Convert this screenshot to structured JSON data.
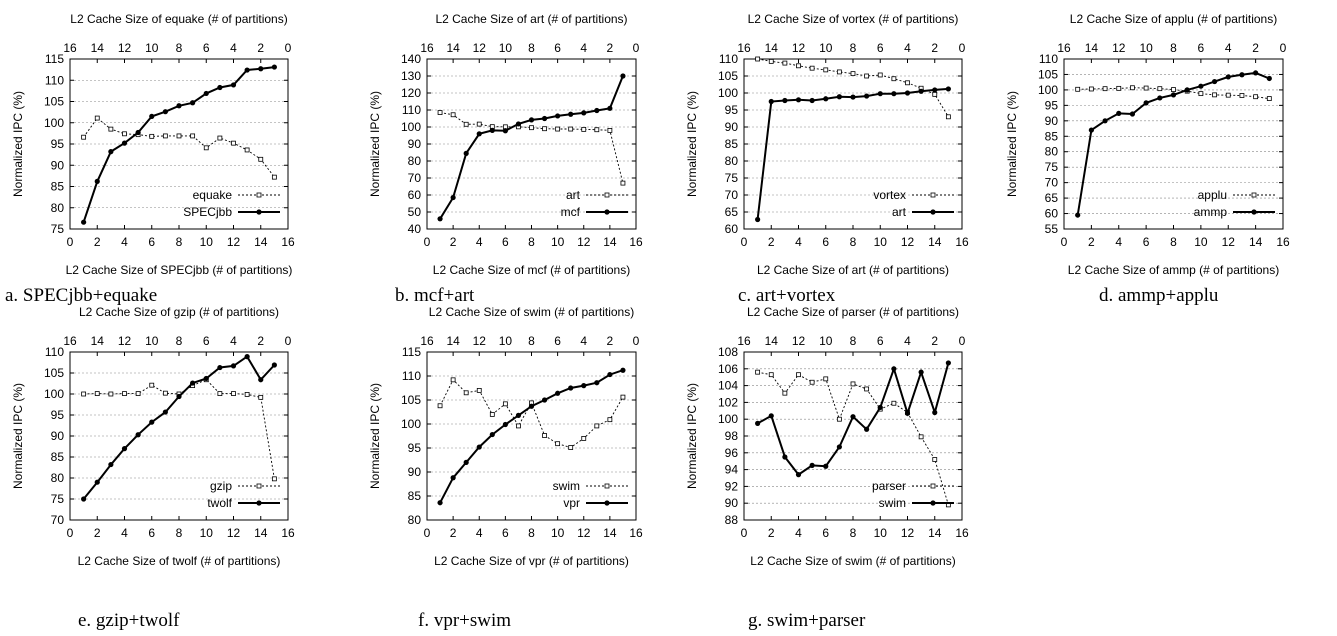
{
  "figure": {
    "y_axis_label": "Normalized IPC (%)",
    "top_tick_labels": [
      "16",
      "14",
      "12",
      "10",
      "8",
      "6",
      "4",
      "2",
      "0"
    ],
    "bottom_tick_labels": [
      "0",
      "2",
      "4",
      "6",
      "8",
      "10",
      "12",
      "14",
      "16"
    ]
  },
  "chart_data": [
    {
      "type": "line",
      "caption": "a. SPECjbb+equake",
      "xlabel": "L2 Cache Size of SPECjbb (# of partitions)",
      "x2label": "L2 Cache Size of equake (# of partitions)",
      "ylabel": "Normalized IPC (%)",
      "xlim": [
        0,
        16
      ],
      "ylim": [
        75,
        115
      ],
      "yticks": [
        75,
        80,
        85,
        90,
        95,
        100,
        105,
        110,
        115
      ],
      "x": [
        1,
        2,
        3,
        4,
        5,
        6,
        7,
        8,
        9,
        10,
        11,
        12,
        13,
        14,
        15
      ],
      "series": [
        {
          "name": "equake",
          "style": "dotted",
          "values": [
            96.6,
            101.1,
            98.5,
            97.4,
            97.2,
            96.8,
            96.9,
            96.9,
            96.9,
            94.1,
            96.4,
            95.2,
            93.6,
            91.4,
            87.2
          ]
        },
        {
          "name": "SPECjbb",
          "style": "solid",
          "values": [
            76.6,
            86.2,
            93.2,
            95.2,
            97.7,
            101.5,
            102.6,
            104.0,
            104.7,
            106.9,
            108.3,
            108.9,
            112.4,
            112.7,
            113.1
          ]
        }
      ],
      "legend_position": "bottom-right"
    },
    {
      "type": "line",
      "caption": "b. mcf+art",
      "xlabel": "L2 Cache Size of mcf (# of partitions)",
      "x2label": "L2 Cache Size of art (# of partitions)",
      "ylabel": "Normalized IPC (%)",
      "xlim": [
        0,
        16
      ],
      "ylim": [
        40,
        140
      ],
      "yticks": [
        40,
        50,
        60,
        70,
        80,
        90,
        100,
        110,
        120,
        130,
        140
      ],
      "x": [
        1,
        2,
        3,
        4,
        5,
        6,
        7,
        8,
        9,
        10,
        11,
        12,
        13,
        14,
        15
      ],
      "series": [
        {
          "name": "art",
          "style": "dotted",
          "values": [
            108.5,
            107.2,
            101.6,
            101.7,
            100.2,
            100.1,
            100.1,
            99.6,
            99.0,
            98.8,
            98.8,
            98.6,
            98.4,
            98.0,
            67.0
          ]
        },
        {
          "name": "mcf",
          "style": "solid",
          "values": [
            46.0,
            58.5,
            84.5,
            96.0,
            98.0,
            97.8,
            101.8,
            104.2,
            105.0,
            106.5,
            107.5,
            108.3,
            109.7,
            111.0,
            130.0
          ]
        }
      ],
      "legend_position": "bottom-right"
    },
    {
      "type": "line",
      "caption": "c. art+vortex",
      "xlabel": "L2 Cache Size of art (# of partitions)",
      "x2label": "L2 Cache Size of vortex (# of partitions)",
      "ylabel": "Normalized IPC (%)",
      "xlim": [
        0,
        16
      ],
      "ylim": [
        60,
        110
      ],
      "yticks": [
        60,
        65,
        70,
        75,
        80,
        85,
        90,
        95,
        100,
        105,
        110
      ],
      "x": [
        1,
        2,
        3,
        4,
        5,
        6,
        7,
        8,
        9,
        10,
        11,
        12,
        13,
        14,
        15
      ],
      "series": [
        {
          "name": "vortex",
          "style": "dotted",
          "values": [
            110.0,
            109.3,
            108.8,
            108.0,
            107.3,
            106.8,
            106.2,
            105.7,
            105.0,
            105.3,
            104.2,
            103.0,
            101.4,
            99.6,
            93.0
          ]
        },
        {
          "name": "art",
          "style": "solid",
          "values": [
            62.8,
            97.5,
            97.8,
            98.0,
            97.8,
            98.3,
            98.9,
            98.8,
            99.1,
            99.8,
            99.8,
            100.0,
            100.5,
            100.9,
            101.2
          ]
        }
      ],
      "legend_position": "bottom-right"
    },
    {
      "type": "line",
      "caption": "d. ammp+applu",
      "xlabel": "L2 Cache Size of ammp (# of partitions)",
      "x2label": "L2 Cache Size of applu (# of partitions)",
      "ylabel": "Normalized IPC (%)",
      "xlim": [
        0,
        16
      ],
      "ylim": [
        55,
        110
      ],
      "yticks": [
        55,
        60,
        65,
        70,
        75,
        80,
        85,
        90,
        95,
        100,
        105,
        110
      ],
      "x": [
        1,
        2,
        3,
        4,
        5,
        6,
        7,
        8,
        9,
        10,
        11,
        12,
        13,
        14,
        15
      ],
      "series": [
        {
          "name": "applu",
          "style": "dotted",
          "values": [
            100.2,
            100.3,
            100.4,
            100.5,
            100.7,
            100.6,
            100.4,
            100.1,
            99.6,
            98.8,
            98.4,
            98.3,
            98.2,
            97.8,
            97.2
          ]
        },
        {
          "name": "ammp",
          "style": "solid",
          "values": [
            59.5,
            87.0,
            90.0,
            92.4,
            92.2,
            95.8,
            97.4,
            98.4,
            100.0,
            101.2,
            102.7,
            104.2,
            104.9,
            105.5,
            103.7
          ]
        }
      ],
      "legend_position": "bottom-right"
    },
    {
      "type": "line",
      "caption": "e. gzip+twolf",
      "xlabel": "L2 Cache Size of twolf (# of partitions)",
      "x2label": "L2 Cache Size of gzip (# of partitions)",
      "ylabel": "Normalized IPC (%)",
      "xlim": [
        0,
        16
      ],
      "ylim": [
        70,
        110
      ],
      "yticks": [
        70,
        75,
        80,
        85,
        90,
        95,
        100,
        105,
        110
      ],
      "x": [
        1,
        2,
        3,
        4,
        5,
        6,
        7,
        8,
        9,
        10,
        11,
        12,
        13,
        14,
        15
      ],
      "series": [
        {
          "name": "gzip",
          "style": "dotted",
          "values": [
            100.0,
            100.1,
            100.0,
            100.1,
            100.1,
            102.1,
            100.2,
            100.0,
            102.0,
            103.4,
            100.1,
            100.1,
            99.9,
            99.2,
            79.8
          ]
        },
        {
          "name": "twolf",
          "style": "solid",
          "values": [
            75.0,
            79.0,
            83.2,
            87.0,
            90.3,
            93.3,
            95.7,
            99.4,
            102.6,
            103.7,
            106.3,
            106.7,
            108.9,
            103.4,
            106.9
          ]
        }
      ],
      "legend_position": "bottom-right"
    },
    {
      "type": "line",
      "caption": "f. vpr+swim",
      "xlabel": "L2 Cache Size of vpr (# of partitions)",
      "x2label": "L2 Cache Size of swim (# of partitions)",
      "ylabel": "Normalized IPC (%)",
      "xlim": [
        0,
        16
      ],
      "ylim": [
        80,
        115
      ],
      "yticks": [
        80,
        85,
        90,
        95,
        100,
        105,
        110,
        115
      ],
      "x": [
        1,
        2,
        3,
        4,
        5,
        6,
        7,
        8,
        9,
        10,
        11,
        12,
        13,
        14,
        15
      ],
      "series": [
        {
          "name": "swim",
          "style": "dotted",
          "values": [
            103.8,
            109.2,
            106.5,
            107.0,
            102.0,
            104.2,
            99.6,
            104.4,
            97.6,
            95.9,
            95.1,
            97.0,
            99.6,
            100.9,
            105.6
          ]
        },
        {
          "name": "vpr",
          "style": "solid",
          "values": [
            83.6,
            88.8,
            92.0,
            95.2,
            97.8,
            99.9,
            101.8,
            103.7,
            105.0,
            106.4,
            107.5,
            108.0,
            108.6,
            110.3,
            111.2
          ]
        }
      ],
      "legend_position": "bottom-right"
    },
    {
      "type": "line",
      "caption": "g. swim+parser",
      "xlabel": "L2 Cache Size of swim (# of partitions)",
      "x2label": "L2 Cache Size of parser (# of partitions)",
      "ylabel": "Normalized IPC (%)",
      "xlim": [
        0,
        16
      ],
      "ylim": [
        88,
        108
      ],
      "yticks": [
        88,
        90,
        92,
        94,
        96,
        98,
        100,
        102,
        104,
        106,
        108
      ],
      "x": [
        1,
        2,
        3,
        4,
        5,
        6,
        7,
        8,
        9,
        10,
        11,
        12,
        13,
        14,
        15
      ],
      "series": [
        {
          "name": "parser",
          "style": "dotted",
          "values": [
            105.6,
            105.3,
            103.1,
            105.3,
            104.4,
            104.8,
            100.0,
            104.2,
            103.6,
            101.2,
            101.9,
            100.8,
            97.9,
            95.2,
            89.8
          ]
        },
        {
          "name": "swim",
          "style": "solid",
          "values": [
            99.5,
            100.4,
            95.5,
            93.4,
            94.5,
            94.4,
            96.7,
            100.3,
            98.8,
            101.4,
            106.0,
            100.7,
            105.6,
            100.8,
            106.7
          ]
        }
      ],
      "legend_position": "bottom-right"
    }
  ]
}
